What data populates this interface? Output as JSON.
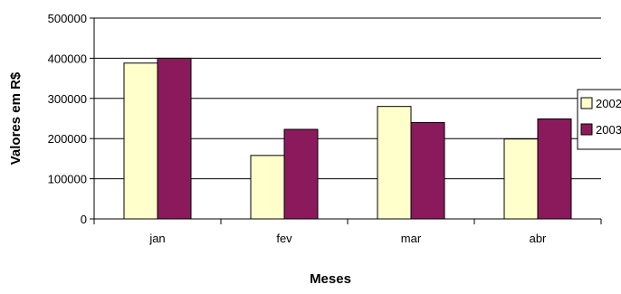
{
  "chart_data": {
    "type": "bar",
    "categories": [
      "jan",
      "fev",
      "mar",
      "abr"
    ],
    "series": [
      {
        "name": "2002",
        "values": [
          388000,
          158000,
          280000,
          199000
        ],
        "color": "#FFFFCC"
      },
      {
        "name": "2003",
        "values": [
          400000,
          223000,
          240000,
          249000
        ],
        "color": "#8B1A5C"
      }
    ],
    "xlabel": "Meses",
    "ylabel": "Valores em R$",
    "ylim": [
      0,
      500000
    ],
    "yticks": [
      "0",
      "100000",
      "200000",
      "300000",
      "400000",
      "500000"
    ],
    "grid": true,
    "legend_position": "right"
  }
}
